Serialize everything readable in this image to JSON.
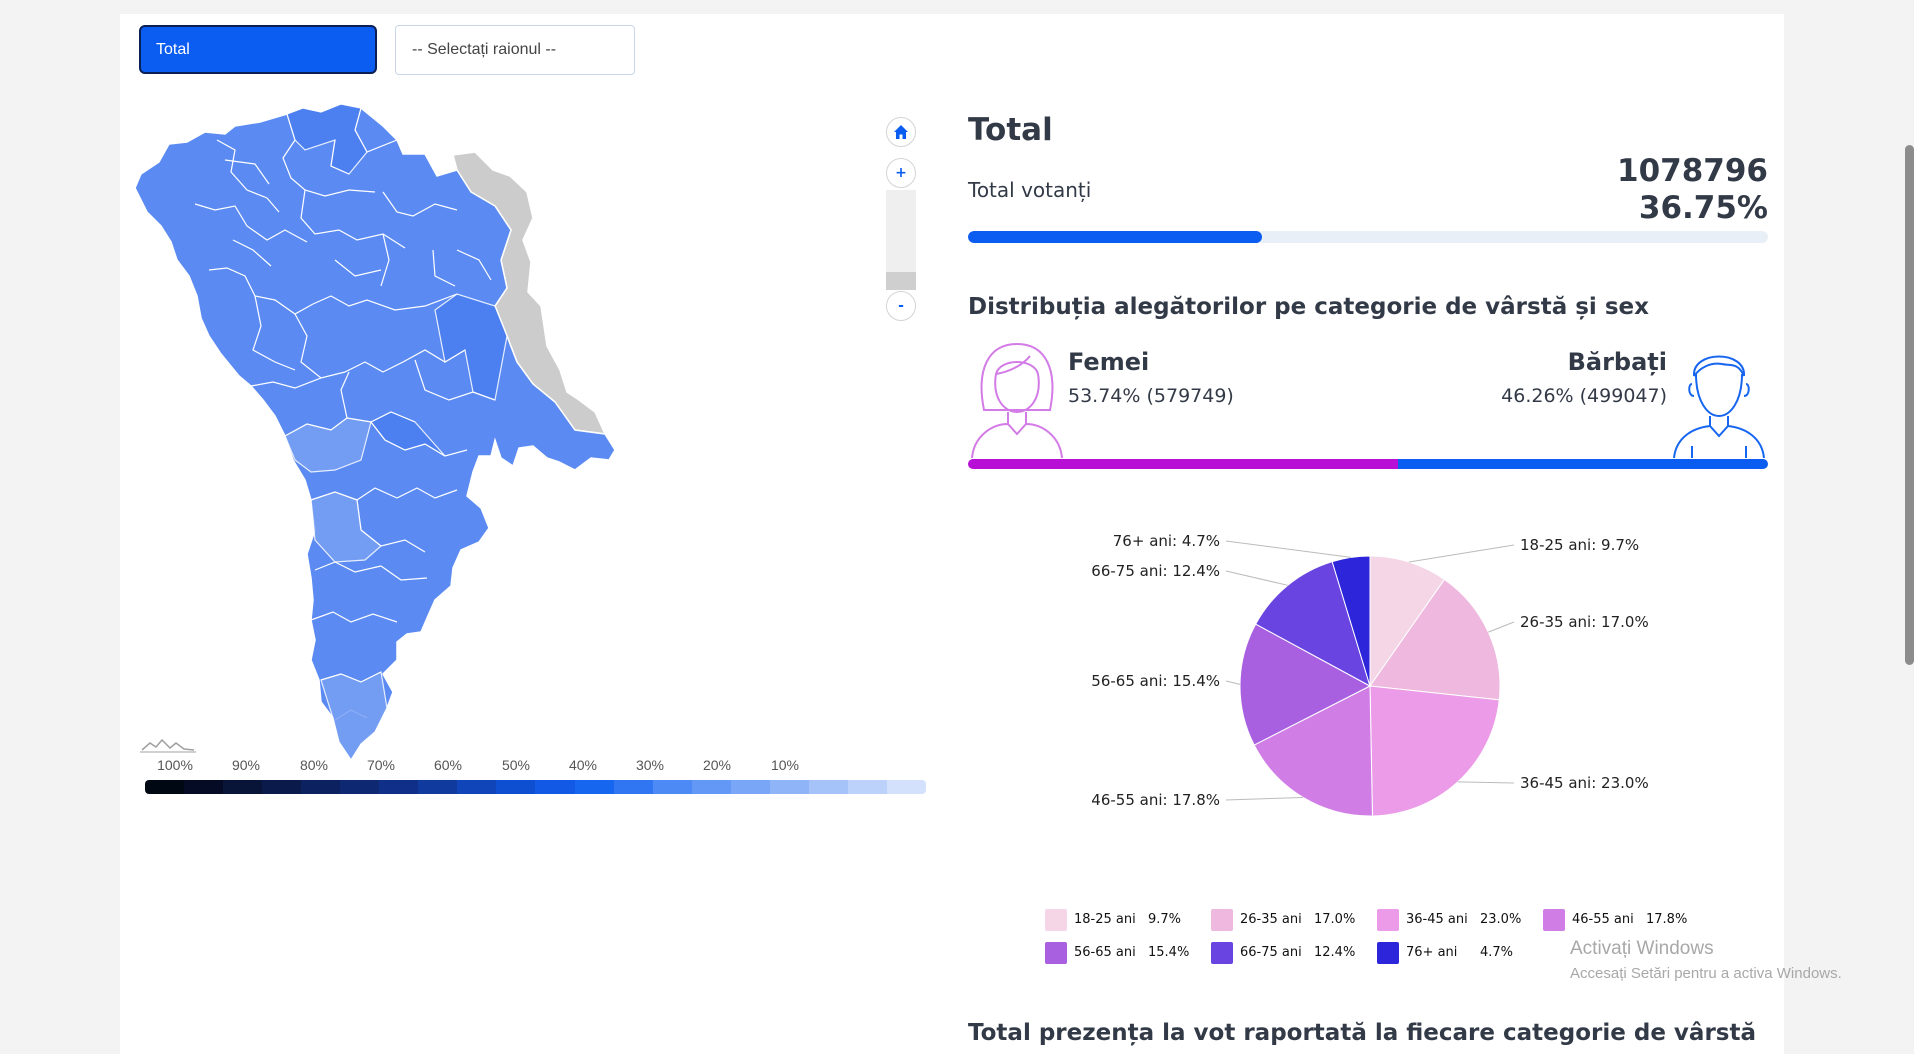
{
  "controls": {
    "total_button": "Total",
    "raion_select": "-- Selectați raionul --"
  },
  "map": {
    "zoom_in": "+",
    "zoom_out": "-",
    "legend_labels": [
      "100%",
      "90%",
      "80%",
      "70%",
      "60%",
      "50%",
      "40%",
      "30%",
      "20%",
      "10%"
    ],
    "legend_colors": [
      "#050b24",
      "#0a1a4a",
      "#0e2872",
      "#113a9e",
      "#0d4fd0",
      "#1766f0",
      "#4e8af5",
      "#7aa6f7",
      "#a5c2f9",
      "#d3e1fc"
    ],
    "fill_colors": {
      "region": "#5b8bf2",
      "region_alt": "#4a7ef0",
      "region_light": "#78a0f4",
      "transnistria": "#cccccc"
    }
  },
  "summary": {
    "title": "Total",
    "voters_label": "Total votanți",
    "voters_count": "1078796",
    "voters_pct": "36.75%",
    "voters_fraction": 0.3675
  },
  "gender": {
    "heading": "Distribuția alegătorilor pe categorie de vârstă și sex",
    "women_label": "Femei",
    "women_value": "53.74% (579749)",
    "women_fraction": 0.5374,
    "women_color": "#b80fd7",
    "men_label": "Bărbați",
    "men_value": "46.26% (499047)",
    "men_color": "#0b5cf0"
  },
  "chart_data": {
    "type": "pie",
    "categories": [
      "18-25 ani",
      "26-35 ani",
      "36-45 ani",
      "46-55 ani",
      "56-65 ani",
      "66-75 ani",
      "76+ ani"
    ],
    "values": [
      9.7,
      17.0,
      23.0,
      17.8,
      15.4,
      12.4,
      4.7
    ],
    "labels": [
      "18-25 ani: 9.7%",
      "26-35 ani: 17.0%",
      "36-45 ani: 23.0%",
      "46-55 ani: 17.8%",
      "56-65 ani: 15.4%",
      "66-75 ani: 12.4%",
      "76+ ani: 4.7%"
    ],
    "legend_pct": [
      "9.7%",
      "17.0%",
      "23.0%",
      "17.8%",
      "15.4%",
      "12.4%",
      "4.7%"
    ],
    "colors": [
      "#f4d6e6",
      "#efb9df",
      "#eb9be7",
      "#d07ee6",
      "#a860e0",
      "#6a44e0",
      "#2c25da"
    ],
    "legend_position": "bottom"
  },
  "overlay": {
    "activate_title": "Activați Windows",
    "activate_sub": "Accesați Setări pentru a activa Windows."
  },
  "bottom": {
    "heading": "Total prezența la vot raportată la fiecare categorie de vârstă"
  }
}
